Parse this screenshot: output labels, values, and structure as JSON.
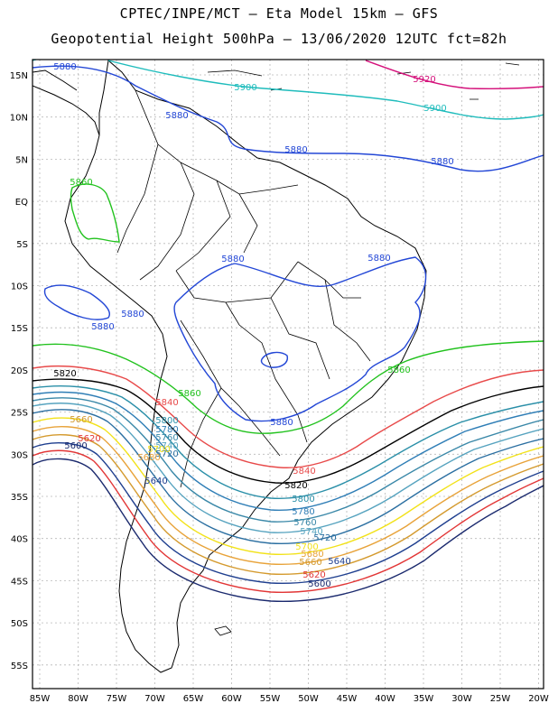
{
  "header": {
    "line1": "CPTEC/INPE/MCT –  Eta Model 15km – GFS",
    "line2": "Geopotential Height 500hPa – 13/06/2020 12UTC fct=82h"
  },
  "map": {
    "lat_ticks": [
      "15N",
      "10N",
      "5N",
      "EQ",
      "5S",
      "10S",
      "15S",
      "20S",
      "25S",
      "30S",
      "35S",
      "40S",
      "45S",
      "50S",
      "55S"
    ],
    "lon_ticks": [
      "85W",
      "80W",
      "75W",
      "70W",
      "65W",
      "60W",
      "55W",
      "50W",
      "45W",
      "40W",
      "35W",
      "30W",
      "25W",
      "20W"
    ],
    "contours": [
      {
        "value": 5920,
        "color": "#d4107a",
        "labels": [
          "5920"
        ]
      },
      {
        "value": 5900,
        "color": "#1fbcbc",
        "labels": [
          "5900",
          "5900"
        ]
      },
      {
        "value": 5880,
        "color": "#2347d6",
        "labels": [
          "5880",
          "5880",
          "5880",
          "5880",
          "5880",
          "5880",
          "5880",
          "5880",
          "5880"
        ]
      },
      {
        "value": 5860,
        "color": "#22c21e",
        "labels": [
          "5860",
          "5860",
          "5860"
        ]
      },
      {
        "value": 5840,
        "color": "#e84a4a",
        "labels": [
          "5840",
          "5840"
        ]
      },
      {
        "value": 5820,
        "color": "#000000",
        "labels": [
          "5820",
          "5820"
        ]
      },
      {
        "value": 5800,
        "color": "#2a8fa8",
        "labels": [
          "5800",
          "5800"
        ]
      },
      {
        "value": 5780,
        "color": "#2f7eb6",
        "labels": [
          "5780",
          "5780"
        ]
      },
      {
        "value": 5760,
        "color": "#3a88a8",
        "labels": [
          "5760",
          "5760"
        ]
      },
      {
        "value": 5740,
        "color": "#56a3bf",
        "labels": [
          "5740",
          "5740"
        ]
      },
      {
        "value": 5720,
        "color": "#2b6fa1",
        "labels": [
          "5720",
          "5720"
        ]
      },
      {
        "value": 5700,
        "color": "#f2e21a",
        "labels": [
          "5700",
          "5700"
        ]
      },
      {
        "value": 5680,
        "color": "#e8a33a",
        "labels": [
          "5680",
          "5680"
        ]
      },
      {
        "value": 5660,
        "color": "#d49a2e",
        "labels": [
          "5660",
          "5660"
        ]
      },
      {
        "value": 5640,
        "color": "#1f3f8f",
        "labels": [
          "5640",
          "5640"
        ]
      },
      {
        "value": 5620,
        "color": "#e23636",
        "labels": [
          "5620",
          "5620"
        ]
      },
      {
        "value": 5600,
        "color": "#1b2a6e",
        "labels": [
          "5600",
          "5600"
        ]
      }
    ]
  }
}
